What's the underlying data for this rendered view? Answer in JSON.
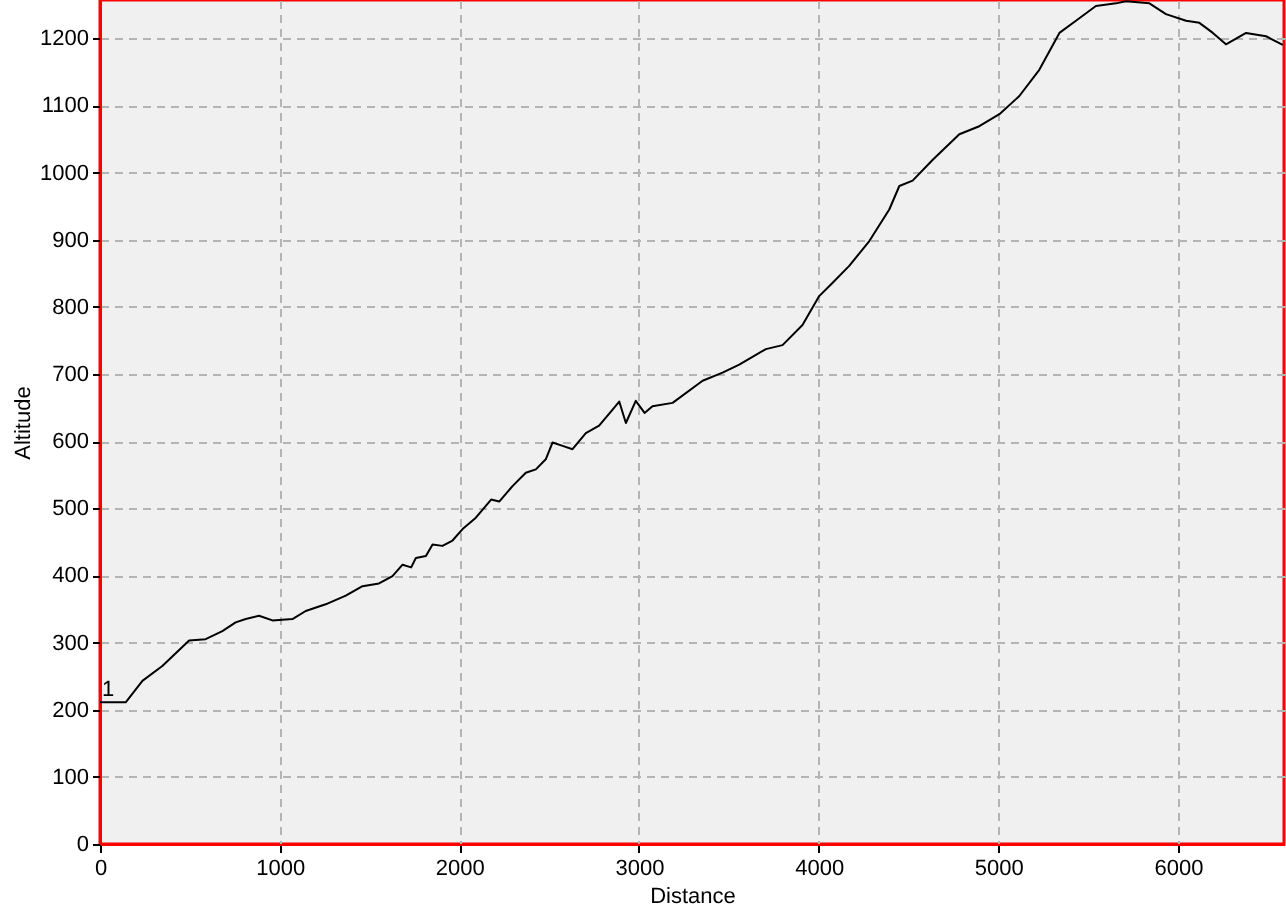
{
  "chart_data": {
    "type": "line",
    "xlabel": "Distance",
    "ylabel": "Altitude",
    "xlim": [
      0,
      6590
    ],
    "ylim": [
      0,
      1257
    ],
    "xticks": [
      0,
      1000,
      2000,
      3000,
      4000,
      5000,
      6000
    ],
    "yticks": [
      0,
      100,
      200,
      300,
      400,
      500,
      600,
      700,
      800,
      900,
      1000,
      1100,
      1200
    ],
    "grid": true,
    "line_style": "solid",
    "annotations": [
      {
        "text": "1",
        "x": 0,
        "y": 211
      }
    ],
    "series": [
      {
        "color": "#000000",
        "x": [
          0,
          143,
          236,
          347,
          496,
          588,
          681,
          755,
          811,
          885,
          960,
          1071,
          1145,
          1256,
          1368,
          1461,
          1553,
          1628,
          1684,
          1732,
          1758,
          1814,
          1851,
          1906,
          1962,
          2018,
          2092,
          2177,
          2222,
          2296,
          2370,
          2426,
          2481,
          2519,
          2575,
          2630,
          2704,
          2778,
          2853,
          2890,
          2927,
          2982,
          3031,
          3075,
          3187,
          3354,
          3465,
          3558,
          3706,
          3799,
          3910,
          4003,
          4078,
          4170,
          4282,
          4393,
          4449,
          4523,
          4635,
          4783,
          4894,
          5006,
          5117,
          5228,
          5340,
          5432,
          5543,
          5655,
          5710,
          5841,
          5933,
          6045,
          6119,
          6194,
          6267,
          6379,
          6490,
          6583
        ],
        "values": [
          211,
          211,
          243,
          265,
          303,
          305,
          317,
          330,
          335,
          340,
          333,
          335,
          347,
          357,
          370,
          384,
          388,
          399,
          416,
          412,
          426,
          429,
          446,
          444,
          452,
          469,
          486,
          513,
          510,
          533,
          553,
          558,
          573,
          598,
          593,
          588,
          612,
          623,
          647,
          659,
          627,
          660,
          642,
          652,
          657,
          690,
          702,
          714,
          737,
          743,
          773,
          816,
          836,
          861,
          898,
          945,
          980,
          988,
          1019,
          1057,
          1069,
          1087,
          1114,
          1153,
          1208,
          1226,
          1248,
          1252,
          1255,
          1252,
          1236,
          1226,
          1223,
          1208,
          1191,
          1208,
          1203,
          1190
        ]
      }
    ]
  }
}
